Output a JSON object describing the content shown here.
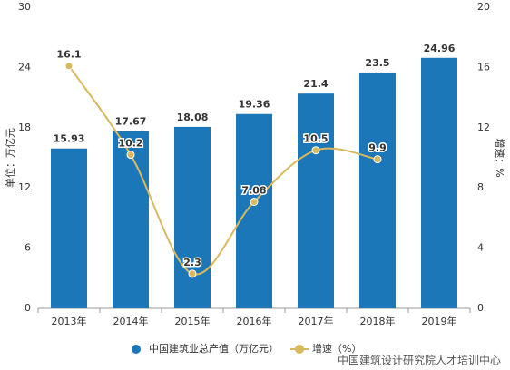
{
  "chart_data": {
    "type": "bar",
    "categories": [
      "2013年",
      "2014年",
      "2015年",
      "2016年",
      "2017年",
      "2018年",
      "2019年"
    ],
    "y_label": "单位：万亿元",
    "y2_label": "增速：%",
    "ylim": [
      0,
      30
    ],
    "yticks": [
      0,
      6,
      12,
      18,
      24,
      30
    ],
    "y2lim": [
      0,
      20
    ],
    "y2ticks": [
      0,
      4,
      8,
      12,
      16,
      20
    ],
    "series": [
      {
        "name": "中国建筑业总产值（万亿元）",
        "type": "bar",
        "color": "#1b77b8",
        "values": [
          15.93,
          17.67,
          18.08,
          19.36,
          21.4,
          23.5,
          24.96
        ]
      },
      {
        "name": "增速（%）",
        "type": "line",
        "axis": "y2",
        "color": "#d8b95e",
        "values": [
          16.1,
          10.2,
          2.3,
          7.08,
          10.5,
          9.9,
          null
        ]
      }
    ],
    "watermark": "中国建筑设计研究院人才培训中心"
  }
}
